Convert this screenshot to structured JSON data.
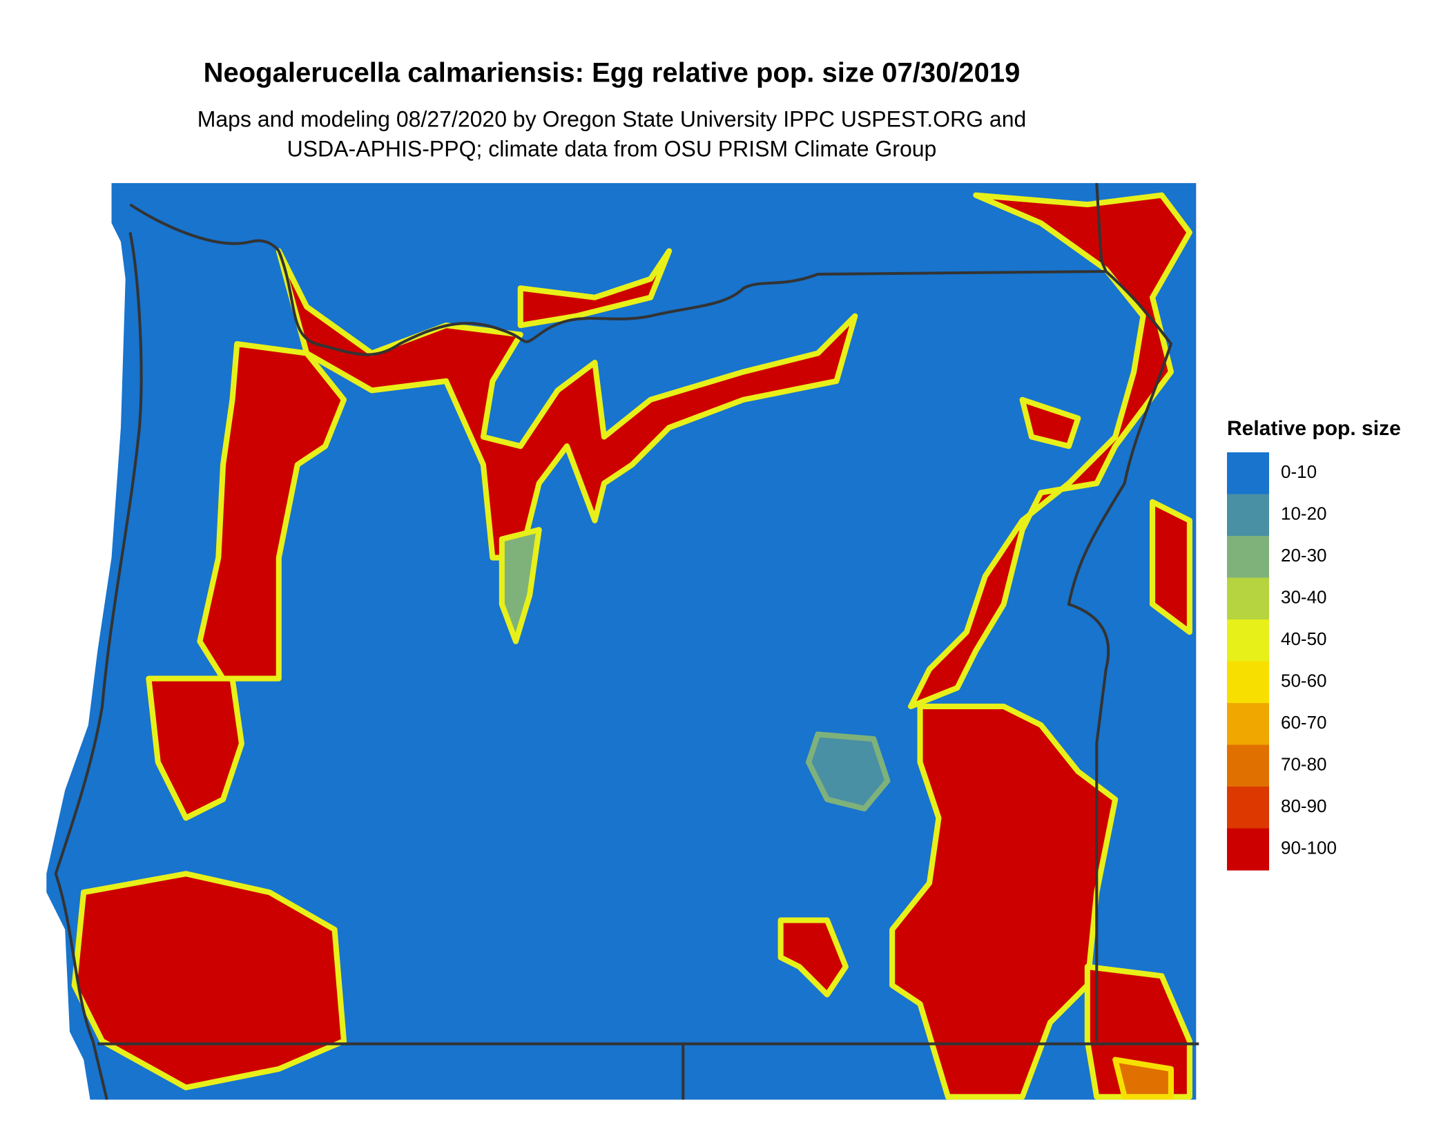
{
  "title": "Neogalerucella calmariensis: Egg relative pop. size 07/30/2019",
  "subtitle": [
    "Maps and modeling 08/27/2020 by Oregon State University IPPC USPEST.ORG and",
    "USDA-APHIS-PPQ; climate data from OSU PRISM Climate Group"
  ],
  "legend": {
    "title": "Relative pop. size",
    "items": [
      {
        "label": "0-10",
        "color": "#1874cd"
      },
      {
        "label": "10-20",
        "color": "#4a90a4"
      },
      {
        "label": "20-30",
        "color": "#7fb27a"
      },
      {
        "label": "30-40",
        "color": "#b5d43f"
      },
      {
        "label": "40-50",
        "color": "#e8f01a"
      },
      {
        "label": "50-60",
        "color": "#f7e000"
      },
      {
        "label": "60-70",
        "color": "#f0a800"
      },
      {
        "label": "70-80",
        "color": "#e07000"
      },
      {
        "label": "80-90",
        "color": "#dc3800"
      },
      {
        "label": "90-100",
        "color": "#cd0000"
      }
    ]
  }
}
